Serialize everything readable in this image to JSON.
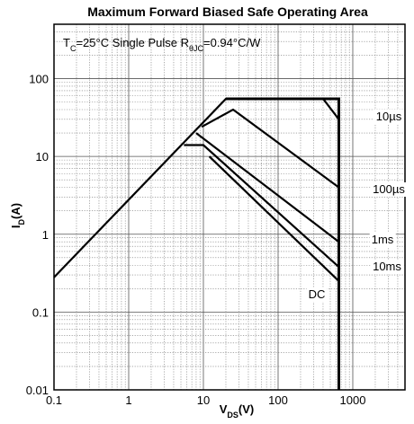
{
  "chart_data": {
    "type": "line",
    "title": "Maximum Forward Biased Safe Operating Area",
    "xlabel": {
      "main": "V",
      "sub": "DS",
      "unit": "(V)"
    },
    "ylabel": {
      "main": "I",
      "sub": "D",
      "unit": "(A)"
    },
    "x_scale": "log",
    "y_scale": "log",
    "xlim": [
      0.1,
      5000
    ],
    "ylim": [
      0.01,
      500
    ],
    "x_ticks": [
      {
        "value": 0.1,
        "label": "0.1"
      },
      {
        "value": 1,
        "label": "1"
      },
      {
        "value": 10,
        "label": "10"
      },
      {
        "value": 100,
        "label": "100"
      },
      {
        "value": 1000,
        "label": "1000"
      }
    ],
    "y_ticks": [
      {
        "value": 0.01,
        "label": "0.01"
      },
      {
        "value": 0.1,
        "label": "0.1"
      },
      {
        "value": 1,
        "label": "1"
      },
      {
        "value": 10,
        "label": "10"
      },
      {
        "value": 100,
        "label": "100"
      }
    ],
    "grid": true,
    "annotation": {
      "parts": [
        {
          "text": "T",
          "sub": false
        },
        {
          "text": "C",
          "sub": true
        },
        {
          "text": "=25°C Single Pulse R",
          "sub": false
        },
        {
          "text": "θJC",
          "sub": true
        },
        {
          "text": "=0.94°C/W",
          "sub": false
        }
      ]
    },
    "series": [
      {
        "name": "10µs",
        "points": [
          [
            0.1,
            0.28
          ],
          [
            20,
            55
          ],
          [
            400,
            55
          ],
          [
            650,
            30
          ]
        ]
      },
      {
        "name": "100µs",
        "points": [
          [
            9.5,
            24
          ],
          [
            25,
            40
          ],
          [
            650,
            4
          ]
        ]
      },
      {
        "name": "1ms",
        "points": [
          [
            8,
            20
          ],
          [
            650,
            0.8
          ]
        ]
      },
      {
        "name": "10ms",
        "points": [
          [
            5.5,
            14
          ],
          [
            10,
            14
          ],
          [
            650,
            0.38
          ]
        ]
      },
      {
        "name": "DC",
        "points": [
          [
            12,
            10
          ],
          [
            650,
            0.25
          ]
        ]
      }
    ],
    "boundary": {
      "points": [
        [
          20,
          55
        ],
        [
          650,
          55
        ],
        [
          650,
          0.01
        ]
      ]
    }
  }
}
